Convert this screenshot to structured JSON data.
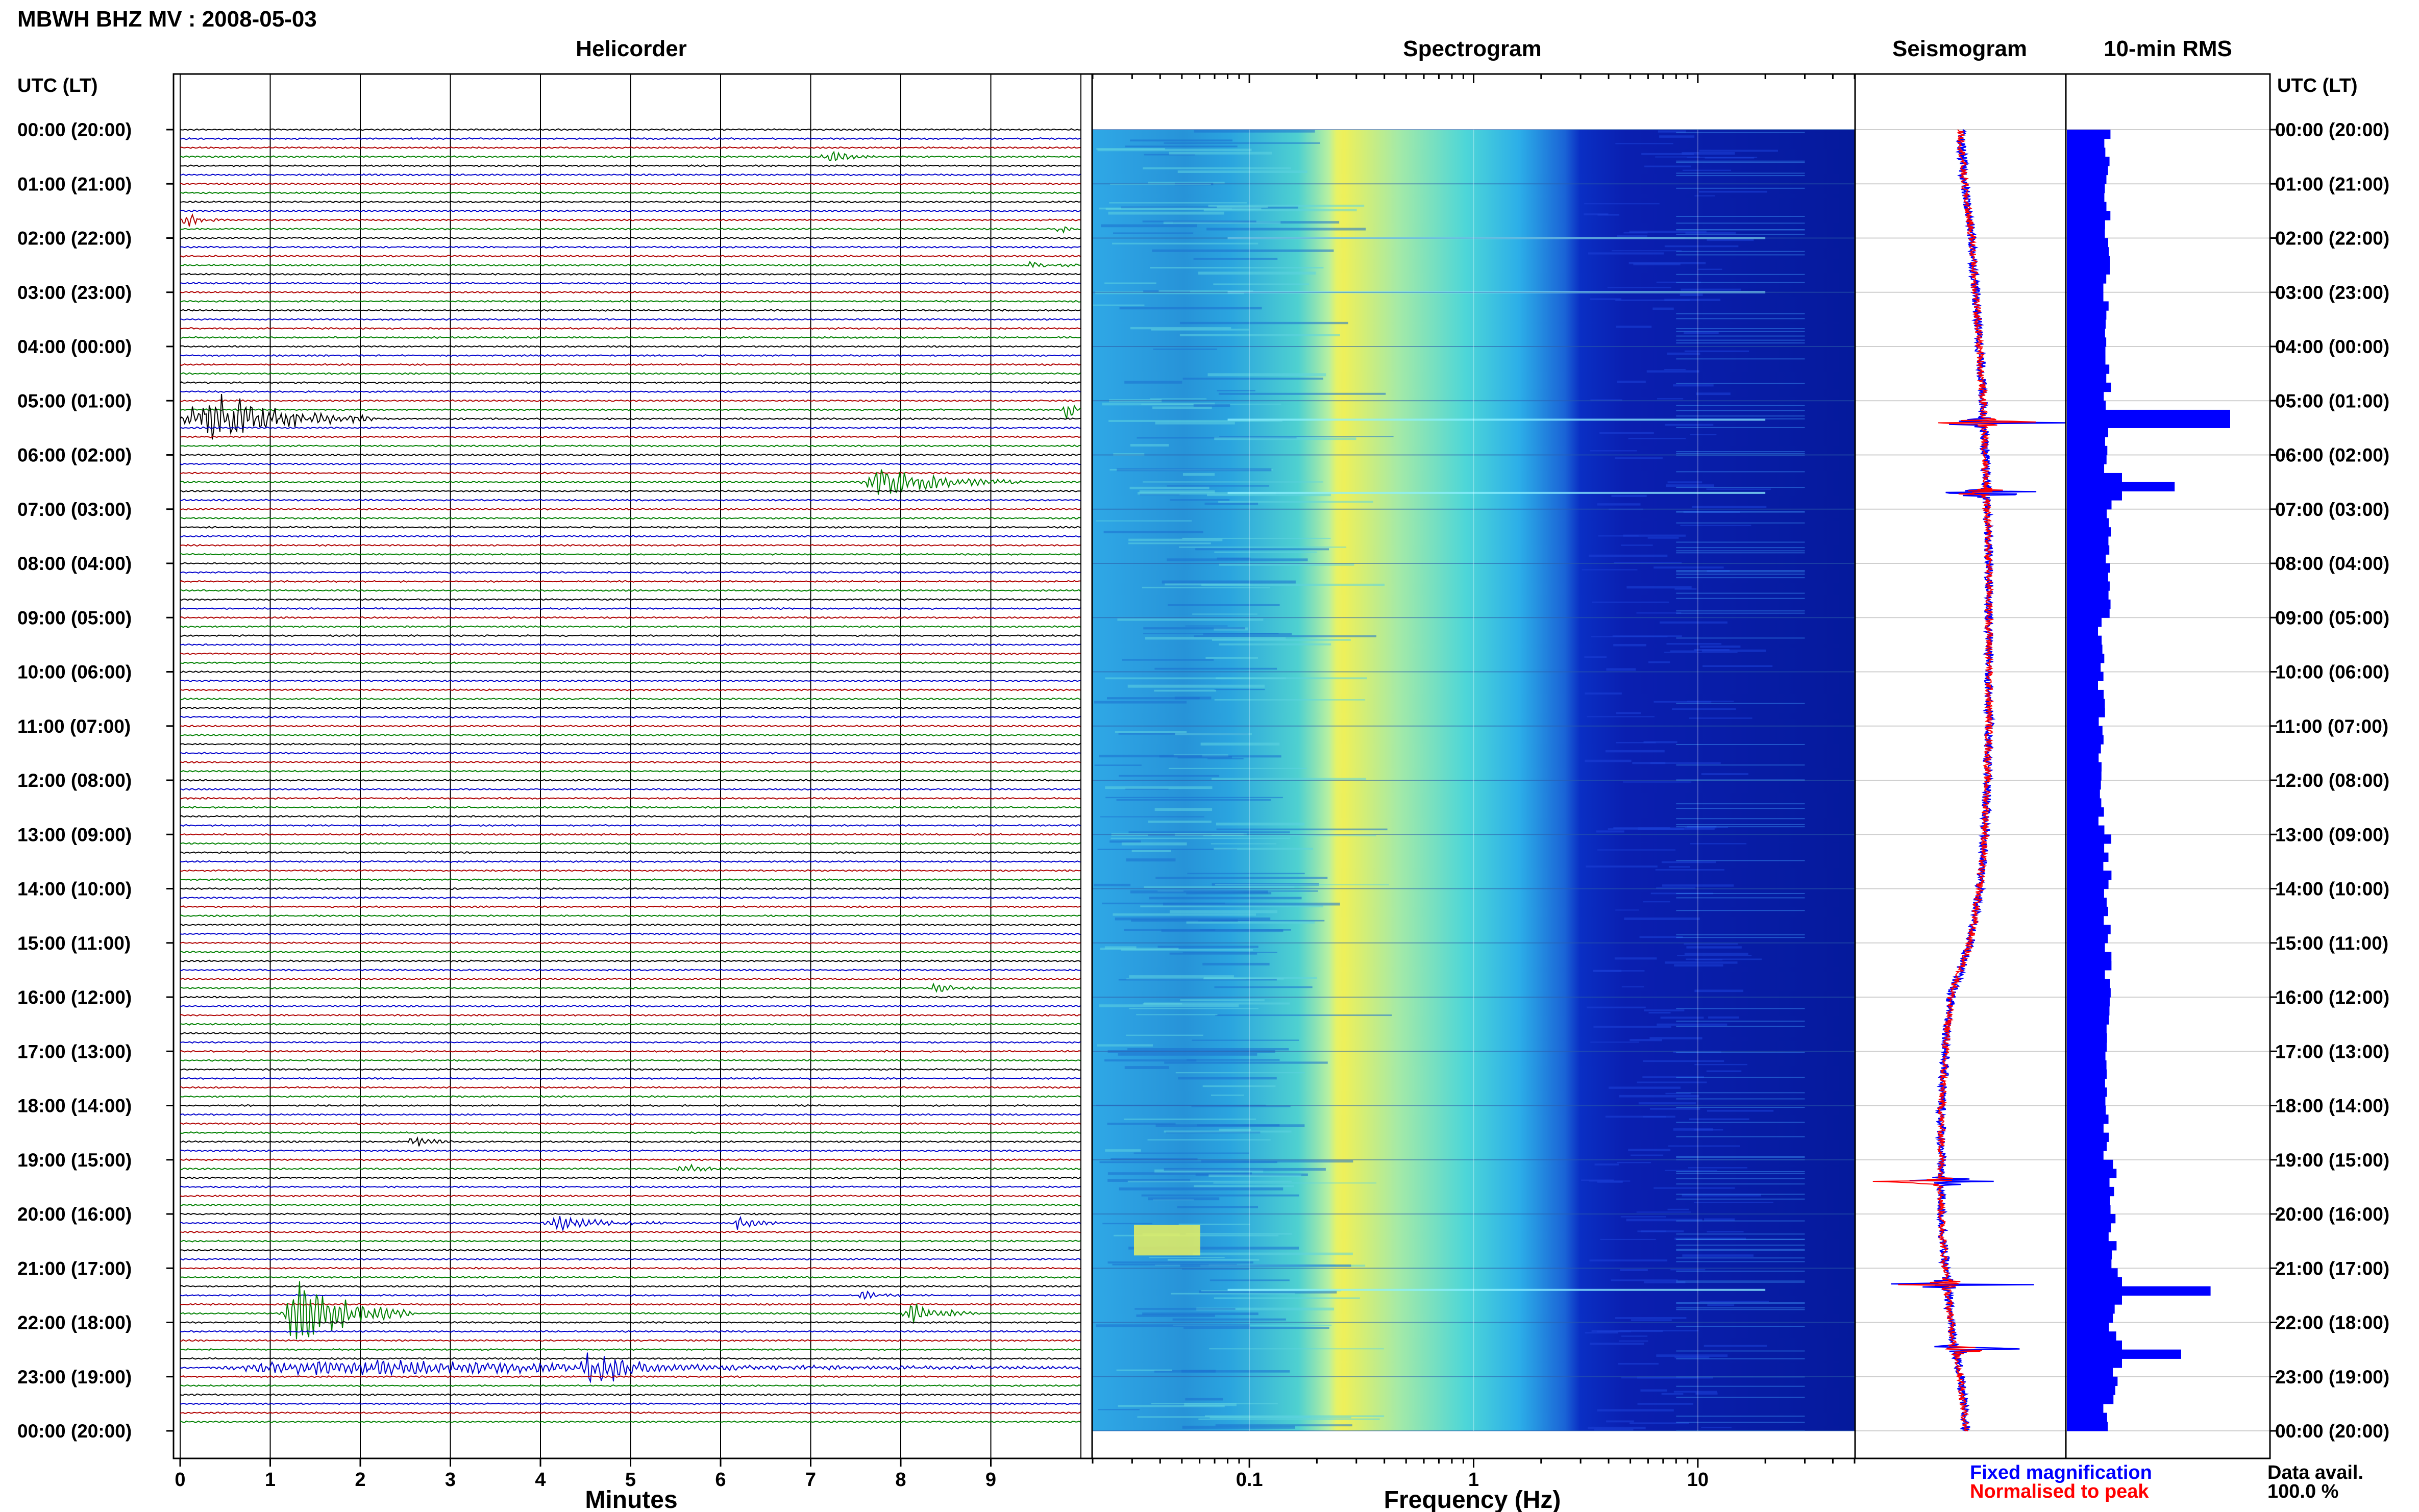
{
  "header": {
    "title": "MBWH BHZ MV : 2008-05-03",
    "panel_titles": [
      "Helicorder",
      "Spectrogram",
      "Seismogram",
      "10-min RMS"
    ],
    "utc_lt_label": "UTC (LT)"
  },
  "footer": {
    "legend_fixed": "Fixed magnification",
    "legend_normalised": "Normalised to peak",
    "data_avail_label": "Data avail.",
    "data_avail_value": "100.0 %"
  },
  "colors": {
    "trace_cycle": [
      "#000000",
      "#0000cc",
      "#b00000",
      "#008000"
    ],
    "fixed_magnification": "#0000ff",
    "normalised_to_peak": "#ff0000",
    "rms_bar": "#0000ff"
  },
  "chart_data": [
    {
      "type": "line",
      "panel": "Helicorder",
      "xlabel": "Minutes",
      "x_ticks": [
        "0",
        "1",
        "2",
        "3",
        "4",
        "5",
        "6",
        "7",
        "8",
        "9"
      ],
      "xlim": [
        0,
        10
      ],
      "traces_per_hour": 6,
      "hours": 24,
      "time_labels": [
        "00:00 (20:00)",
        "01:00 (21:00)",
        "02:00 (22:00)",
        "03:00 (23:00)",
        "04:00 (00:00)",
        "05:00 (01:00)",
        "06:00 (02:00)",
        "07:00 (03:00)",
        "08:00 (04:00)",
        "09:00 (05:00)",
        "10:00 (06:00)",
        "11:00 (07:00)",
        "12:00 (08:00)",
        "13:00 (09:00)",
        "14:00 (10:00)",
        "15:00 (11:00)",
        "16:00 (12:00)",
        "17:00 (13:00)",
        "18:00 (14:00)",
        "19:00 (15:00)",
        "20:00 (16:00)",
        "21:00 (17:00)",
        "22:00 (18:00)",
        "23:00 (19:00)",
        "00:00 (20:00)"
      ],
      "events": [
        {
          "trace": 3,
          "start_min": 7.1,
          "end_min": 7.7,
          "amplitude": 1.5
        },
        {
          "trace": 10,
          "start_min": 0.0,
          "end_min": 0.5,
          "amplitude": 1.5
        },
        {
          "trace": 11,
          "start_min": 9.7,
          "end_min": 10.0,
          "amplitude": 1.5
        },
        {
          "trace": 15,
          "start_min": 9.4,
          "end_min": 10.0,
          "amplitude": 1.5
        },
        {
          "trace": 32,
          "start_min": 0.0,
          "end_min": 2.2,
          "amplitude": 7
        },
        {
          "trace": 31,
          "start_min": 9.8,
          "end_min": 10.0,
          "amplitude": 4
        },
        {
          "trace": 39,
          "start_min": 7.5,
          "end_min": 9.4,
          "amplitude": 3.5
        },
        {
          "trace": 95,
          "start_min": 8.3,
          "end_min": 8.9,
          "amplitude": 1.2
        },
        {
          "trace": 112,
          "start_min": 2.5,
          "end_min": 3.1,
          "amplitude": 1.2
        },
        {
          "trace": 115,
          "start_min": 5.5,
          "end_min": 6.2,
          "amplitude": 1.2
        },
        {
          "trace": 121,
          "start_min": 4.0,
          "end_min": 5.5,
          "amplitude": 1.5
        },
        {
          "trace": 121,
          "start_min": 6.1,
          "end_min": 6.7,
          "amplitude": 1.5
        },
        {
          "trace": 129,
          "start_min": 7.5,
          "end_min": 8.0,
          "amplitude": 1.2
        },
        {
          "trace": 131,
          "start_min": 1.1,
          "end_min": 2.6,
          "amplitude": 9
        },
        {
          "trace": 131,
          "start_min": 8.0,
          "end_min": 8.9,
          "amplitude": 2.5
        },
        {
          "trace": 137,
          "start_min": 0.3,
          "end_min": 10.0,
          "amplitude": 2
        },
        {
          "trace": 137,
          "start_min": 4.4,
          "end_min": 5.6,
          "amplitude": 5.5
        }
      ]
    },
    {
      "type": "heatmap",
      "panel": "Spectrogram",
      "xlabel": "Frequency (Hz)",
      "x_scale": "log",
      "xlim": [
        0.02,
        50
      ],
      "x_ticks": [
        0.1,
        1,
        10
      ],
      "x_tick_labels": [
        "0.1",
        "1",
        "10"
      ],
      "peak_band_hz": [
        0.18,
        0.35
      ],
      "rolloff_hz": 3,
      "hours": 24
    },
    {
      "type": "line",
      "panel": "Seismogram",
      "hours": 24,
      "series": [
        {
          "name": "Fixed magnification",
          "color": "#0000ff"
        },
        {
          "name": "Normalised to peak",
          "color": "#ff0000"
        }
      ],
      "baseline_drift": [
        0.5,
        0.52,
        0.56,
        0.58,
        0.6,
        0.62,
        0.63,
        0.64,
        0.65,
        0.65,
        0.65,
        0.65,
        0.64,
        0.63,
        0.6,
        0.55,
        0.45,
        0.42,
        0.4,
        0.4,
        0.4,
        0.42,
        0.45,
        0.5,
        0.53
      ],
      "spikes_hour": [
        5.4,
        6.7,
        19.4,
        21.3,
        22.5
      ]
    },
    {
      "type": "bar",
      "panel": "10-min RMS",
      "hours": 24,
      "bins_per_hour": 6,
      "baseline": 0.27,
      "peaks": [
        {
          "hour": 5.33,
          "value": 1.0
        },
        {
          "hour": 6.6,
          "value": 0.66
        },
        {
          "hour": 21.4,
          "value": 0.88
        },
        {
          "hour": 22.6,
          "value": 0.7
        }
      ]
    }
  ]
}
